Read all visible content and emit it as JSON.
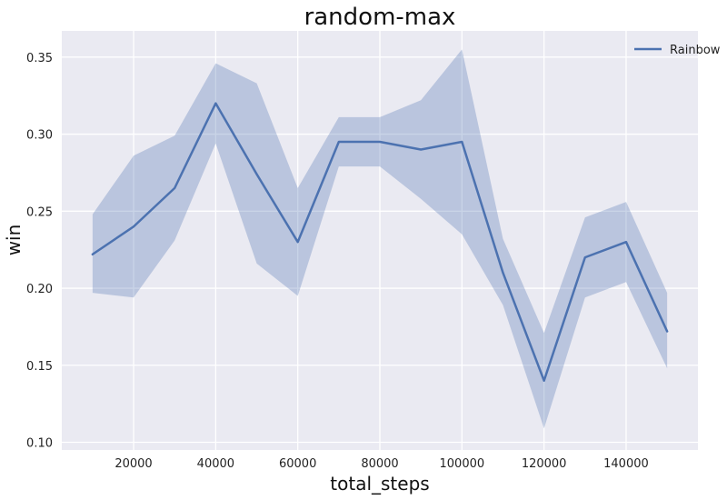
{
  "chart_data": {
    "type": "line",
    "title": "random-max",
    "xlabel": "total_steps",
    "ylabel": "win",
    "xlim": [
      2500,
      157500
    ],
    "ylim": [
      0.095,
      0.367
    ],
    "xticks": [
      20000,
      40000,
      60000,
      80000,
      100000,
      120000,
      140000
    ],
    "xtick_labels": [
      "20000",
      "40000",
      "60000",
      "80000",
      "100000",
      "120000",
      "140000"
    ],
    "yticks": [
      0.1,
      0.15,
      0.2,
      0.25,
      0.3,
      0.35
    ],
    "ytick_labels": [
      "0.10",
      "0.15",
      "0.20",
      "0.25",
      "0.30",
      "0.35"
    ],
    "grid": true,
    "legend_position": "top-right",
    "background_color": "#eaeaf2",
    "grid_color": "#ffffff",
    "series": [
      {
        "name": "Rainbow",
        "color": "#4c72b0",
        "band_color": "#4c72b0",
        "x": [
          10000,
          20000,
          30000,
          40000,
          50000,
          60000,
          70000,
          80000,
          90000,
          100000,
          110000,
          120000,
          130000,
          140000,
          150000
        ],
        "y": [
          0.222,
          0.24,
          0.265,
          0.32,
          0.274,
          0.23,
          0.295,
          0.295,
          0.29,
          0.295,
          0.21,
          0.14,
          0.22,
          0.23,
          0.172
        ],
        "lower": [
          0.197,
          0.194,
          0.231,
          0.294,
          0.216,
          0.195,
          0.279,
          0.279,
          0.258,
          0.235,
          0.189,
          0.109,
          0.194,
          0.204,
          0.148
        ],
        "upper": [
          0.248,
          0.286,
          0.299,
          0.346,
          0.333,
          0.265,
          0.311,
          0.311,
          0.322,
          0.355,
          0.232,
          0.171,
          0.246,
          0.256,
          0.197
        ]
      }
    ]
  }
}
